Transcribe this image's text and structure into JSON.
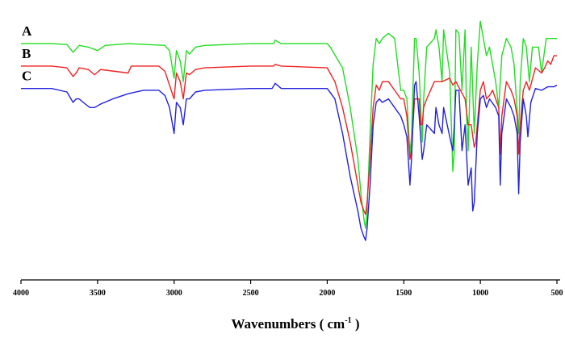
{
  "chart_data": {
    "type": "line",
    "title": "",
    "xlabel": "Wavenumbers",
    "xlabel_unit": "cm",
    "xlabel_unit_exponent": "-1",
    "ylabel": "",
    "xlim": [
      4000,
      500
    ],
    "x_reversed": true,
    "xticks": [
      "4000",
      "3500",
      "3000",
      "2500",
      "2000",
      "1500",
      "1000",
      "500"
    ],
    "yticks_shown": false,
    "grid": false,
    "legend": "none",
    "series": [
      {
        "name": "A",
        "color": "#22dd22",
        "baseline": 0.08,
        "points": [
          [
            4000,
            0.08
          ],
          [
            3800,
            0.08
          ],
          [
            3700,
            0.085
          ],
          [
            3660,
            0.13
          ],
          [
            3620,
            0.09
          ],
          [
            3560,
            0.1
          ],
          [
            3500,
            0.12
          ],
          [
            3450,
            0.09
          ],
          [
            3300,
            0.08
          ],
          [
            3060,
            0.09
          ],
          [
            3030,
            0.12
          ],
          [
            3000,
            0.28
          ],
          [
            2985,
            0.12
          ],
          [
            2960,
            0.18
          ],
          [
            2940,
            0.3
          ],
          [
            2920,
            0.12
          ],
          [
            2900,
            0.14
          ],
          [
            2860,
            0.1
          ],
          [
            2800,
            0.09
          ],
          [
            2500,
            0.08
          ],
          [
            2350,
            0.08
          ],
          [
            2340,
            0.06
          ],
          [
            2300,
            0.08
          ],
          [
            2000,
            0.08
          ],
          [
            1980,
            0.1
          ],
          [
            1900,
            0.22
          ],
          [
            1850,
            0.45
          ],
          [
            1800,
            0.75
          ],
          [
            1780,
            0.95
          ],
          [
            1760,
            1.1
          ],
          [
            1750,
            1.15
          ],
          [
            1740,
            1.05
          ],
          [
            1720,
            0.6
          ],
          [
            1700,
            0.2
          ],
          [
            1680,
            0.05
          ],
          [
            1660,
            0.08
          ],
          [
            1640,
            0.05
          ],
          [
            1600,
            0.02
          ],
          [
            1560,
            0.05
          ],
          [
            1520,
            0.35
          ],
          [
            1500,
            0.35
          ],
          [
            1480,
            0.4
          ],
          [
            1460,
            0.72
          ],
          [
            1450,
            0.62
          ],
          [
            1430,
            0.05
          ],
          [
            1420,
            0.05
          ],
          [
            1400,
            0.25
          ],
          [
            1380,
            0.65
          ],
          [
            1370,
            0.4
          ],
          [
            1350,
            0.1
          ],
          [
            1300,
            0.05
          ],
          [
            1290,
            0.0
          ],
          [
            1270,
            0.1
          ],
          [
            1250,
            0.3
          ],
          [
            1240,
            0.0
          ],
          [
            1200,
            0.25
          ],
          [
            1180,
            0.82
          ],
          [
            1170,
            0.7
          ],
          [
            1160,
            0.0
          ],
          [
            1140,
            0.02
          ],
          [
            1120,
            0.35
          ],
          [
            1100,
            0.0
          ],
          [
            1090,
            0.5
          ],
          [
            1080,
            0.7
          ],
          [
            1060,
            0.1
          ],
          [
            1040,
            0.6
          ],
          [
            1020,
            0.2
          ],
          [
            1000,
            -0.05
          ],
          [
            980,
            0.05
          ],
          [
            960,
            0.15
          ],
          [
            940,
            0.1
          ],
          [
            900,
            0.3
          ],
          [
            880,
            0.45
          ],
          [
            860,
            0.15
          ],
          [
            830,
            0.05
          ],
          [
            800,
            0.1
          ],
          [
            780,
            0.2
          ],
          [
            750,
            0.6
          ],
          [
            740,
            0.3
          ],
          [
            720,
            0.05
          ],
          [
            700,
            0.1
          ],
          [
            680,
            0.3
          ],
          [
            660,
            0.1
          ],
          [
            620,
            0.1
          ],
          [
            600,
            0.25
          ],
          [
            570,
            0.05
          ],
          [
            530,
            0.05
          ],
          [
            500,
            0.05
          ]
        ]
      },
      {
        "name": "B",
        "color": "#ee2222",
        "baseline": 0.21,
        "points": [
          [
            4000,
            0.21
          ],
          [
            3800,
            0.21
          ],
          [
            3700,
            0.22
          ],
          [
            3660,
            0.27
          ],
          [
            3640,
            0.25
          ],
          [
            3620,
            0.22
          ],
          [
            3560,
            0.23
          ],
          [
            3520,
            0.26
          ],
          [
            3480,
            0.23
          ],
          [
            3300,
            0.25
          ],
          [
            3280,
            0.21
          ],
          [
            3100,
            0.21
          ],
          [
            3060,
            0.24
          ],
          [
            3000,
            0.4
          ],
          [
            2985,
            0.25
          ],
          [
            2960,
            0.3
          ],
          [
            2940,
            0.4
          ],
          [
            2920,
            0.25
          ],
          [
            2900,
            0.26
          ],
          [
            2860,
            0.23
          ],
          [
            2800,
            0.22
          ],
          [
            2500,
            0.21
          ],
          [
            2350,
            0.21
          ],
          [
            2340,
            0.2
          ],
          [
            2300,
            0.21
          ],
          [
            2000,
            0.22
          ],
          [
            1950,
            0.3
          ],
          [
            1900,
            0.45
          ],
          [
            1850,
            0.65
          ],
          [
            1800,
            0.9
          ],
          [
            1780,
            1.0
          ],
          [
            1760,
            1.05
          ],
          [
            1750,
            1.07
          ],
          [
            1740,
            1.0
          ],
          [
            1720,
            0.75
          ],
          [
            1700,
            0.45
          ],
          [
            1680,
            0.32
          ],
          [
            1660,
            0.35
          ],
          [
            1640,
            0.3
          ],
          [
            1600,
            0.3
          ],
          [
            1560,
            0.35
          ],
          [
            1520,
            0.4
          ],
          [
            1500,
            0.4
          ],
          [
            1480,
            0.5
          ],
          [
            1460,
            0.75
          ],
          [
            1450,
            0.7
          ],
          [
            1430,
            0.4
          ],
          [
            1400,
            0.4
          ],
          [
            1390,
            0.55
          ],
          [
            1380,
            0.55
          ],
          [
            1370,
            0.45
          ],
          [
            1350,
            0.4
          ],
          [
            1300,
            0.3
          ],
          [
            1250,
            0.3
          ],
          [
            1200,
            0.28
          ],
          [
            1180,
            0.32
          ],
          [
            1160,
            0.3
          ],
          [
            1130,
            0.35
          ],
          [
            1100,
            0.4
          ],
          [
            1080,
            0.55
          ],
          [
            1060,
            0.55
          ],
          [
            1040,
            0.68
          ],
          [
            1030,
            0.65
          ],
          [
            1020,
            0.55
          ],
          [
            1000,
            0.35
          ],
          [
            980,
            0.3
          ],
          [
            960,
            0.4
          ],
          [
            940,
            0.38
          ],
          [
            920,
            0.35
          ],
          [
            900,
            0.4
          ],
          [
            880,
            0.45
          ],
          [
            870,
            0.72
          ],
          [
            860,
            0.5
          ],
          [
            830,
            0.3
          ],
          [
            800,
            0.35
          ],
          [
            780,
            0.4
          ],
          [
            760,
            0.5
          ],
          [
            750,
            0.72
          ],
          [
            740,
            0.55
          ],
          [
            720,
            0.35
          ],
          [
            700,
            0.3
          ],
          [
            680,
            0.35
          ],
          [
            640,
            0.22
          ],
          [
            600,
            0.25
          ],
          [
            580,
            0.22
          ],
          [
            560,
            0.18
          ],
          [
            540,
            0.2
          ],
          [
            520,
            0.15
          ],
          [
            500,
            0.15
          ]
        ]
      },
      {
        "name": "C",
        "color": "#2222dd",
        "baseline": 0.34,
        "points": [
          [
            4000,
            0.34
          ],
          [
            3800,
            0.34
          ],
          [
            3700,
            0.36
          ],
          [
            3660,
            0.42
          ],
          [
            3640,
            0.4
          ],
          [
            3620,
            0.4
          ],
          [
            3580,
            0.43
          ],
          [
            3550,
            0.45
          ],
          [
            3520,
            0.45
          ],
          [
            3480,
            0.43
          ],
          [
            3400,
            0.4
          ],
          [
            3300,
            0.37
          ],
          [
            3200,
            0.35
          ],
          [
            3100,
            0.35
          ],
          [
            3060,
            0.38
          ],
          [
            3030,
            0.45
          ],
          [
            3000,
            0.6
          ],
          [
            2985,
            0.42
          ],
          [
            2960,
            0.45
          ],
          [
            2940,
            0.55
          ],
          [
            2920,
            0.4
          ],
          [
            2900,
            0.4
          ],
          [
            2860,
            0.36
          ],
          [
            2800,
            0.35
          ],
          [
            2500,
            0.34
          ],
          [
            2360,
            0.34
          ],
          [
            2340,
            0.31
          ],
          [
            2300,
            0.34
          ],
          [
            2000,
            0.34
          ],
          [
            1950,
            0.4
          ],
          [
            1900,
            0.6
          ],
          [
            1850,
            0.85
          ],
          [
            1800,
            1.05
          ],
          [
            1780,
            1.15
          ],
          [
            1760,
            1.2
          ],
          [
            1750,
            1.22
          ],
          [
            1740,
            1.15
          ],
          [
            1720,
            0.9
          ],
          [
            1700,
            0.55
          ],
          [
            1680,
            0.42
          ],
          [
            1660,
            0.4
          ],
          [
            1640,
            0.42
          ],
          [
            1600,
            0.4
          ],
          [
            1560,
            0.45
          ],
          [
            1520,
            0.5
          ],
          [
            1500,
            0.55
          ],
          [
            1480,
            0.62
          ],
          [
            1460,
            0.9
          ],
          [
            1450,
            0.75
          ],
          [
            1430,
            0.32
          ],
          [
            1420,
            0.3
          ],
          [
            1400,
            0.5
          ],
          [
            1380,
            0.75
          ],
          [
            1370,
            0.7
          ],
          [
            1350,
            0.55
          ],
          [
            1300,
            0.6
          ],
          [
            1290,
            0.45
          ],
          [
            1270,
            0.55
          ],
          [
            1250,
            0.6
          ],
          [
            1240,
            0.45
          ],
          [
            1200,
            0.62
          ],
          [
            1180,
            0.7
          ],
          [
            1170,
            0.55
          ],
          [
            1160,
            0.35
          ],
          [
            1140,
            0.35
          ],
          [
            1120,
            0.7
          ],
          [
            1100,
            0.55
          ],
          [
            1080,
            0.9
          ],
          [
            1060,
            0.8
          ],
          [
            1050,
            1.05
          ],
          [
            1040,
            1.0
          ],
          [
            1020,
            0.6
          ],
          [
            1000,
            0.4
          ],
          [
            980,
            0.38
          ],
          [
            960,
            0.45
          ],
          [
            940,
            0.4
          ],
          [
            900,
            0.45
          ],
          [
            880,
            0.5
          ],
          [
            870,
            0.9
          ],
          [
            860,
            0.6
          ],
          [
            830,
            0.4
          ],
          [
            800,
            0.45
          ],
          [
            780,
            0.5
          ],
          [
            760,
            0.6
          ],
          [
            750,
            0.95
          ],
          [
            740,
            0.65
          ],
          [
            720,
            0.4
          ],
          [
            700,
            0.5
          ],
          [
            690,
            0.62
          ],
          [
            670,
            0.42
          ],
          [
            640,
            0.34
          ],
          [
            600,
            0.35
          ],
          [
            560,
            0.33
          ],
          [
            520,
            0.33
          ],
          [
            500,
            0.32
          ]
        ]
      }
    ]
  }
}
